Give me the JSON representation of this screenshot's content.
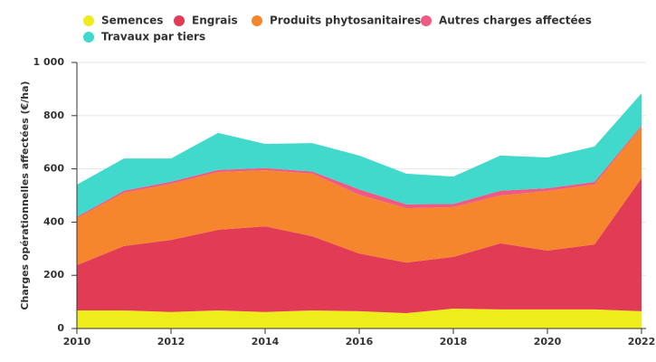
{
  "chart_data": {
    "type": "stacked-area",
    "ylabel": "Charges opérationnelles affectées (€/ha)",
    "x": [
      2010,
      2011,
      2012,
      2013,
      2014,
      2015,
      2016,
      2017,
      2018,
      2019,
      2020,
      2021,
      2022
    ],
    "series": [
      {
        "name": "Semences",
        "color": "#eeec1a",
        "values": [
          68,
          68,
          62,
          68,
          62,
          68,
          65,
          58,
          75,
          72,
          72,
          72,
          65
        ]
      },
      {
        "name": "Engrais",
        "color": "#e23b56",
        "values": [
          170,
          242,
          271,
          303,
          322,
          279,
          217,
          190,
          194,
          248,
          221,
          244,
          500
        ]
      },
      {
        "name": "Produits phytosanitaires",
        "color": "#f5862e",
        "values": [
          177,
          200,
          211,
          217,
          211,
          235,
          221,
          204,
          187,
          180,
          224,
          225,
          193
        ]
      },
      {
        "name": "Autres charges affectées",
        "color": "#ee5a83",
        "values": [
          5,
          8,
          8,
          8,
          8,
          8,
          20,
          15,
          12,
          18,
          10,
          10,
          5
        ]
      },
      {
        "name": "Travaux par tiers",
        "color": "#40d9cc",
        "values": [
          121,
          121,
          87,
          139,
          91,
          107,
          127,
          115,
          103,
          132,
          116,
          133,
          121
        ]
      }
    ],
    "xlim": [
      2010,
      2022
    ],
    "xticks": [
      2010,
      2012,
      2014,
      2016,
      2018,
      2020,
      2022
    ],
    "ylim": [
      0,
      1000
    ],
    "yticks": [
      0,
      200,
      400,
      600,
      800,
      {
        "value": 1000,
        "label": "1 000"
      }
    ],
    "grid": true
  }
}
